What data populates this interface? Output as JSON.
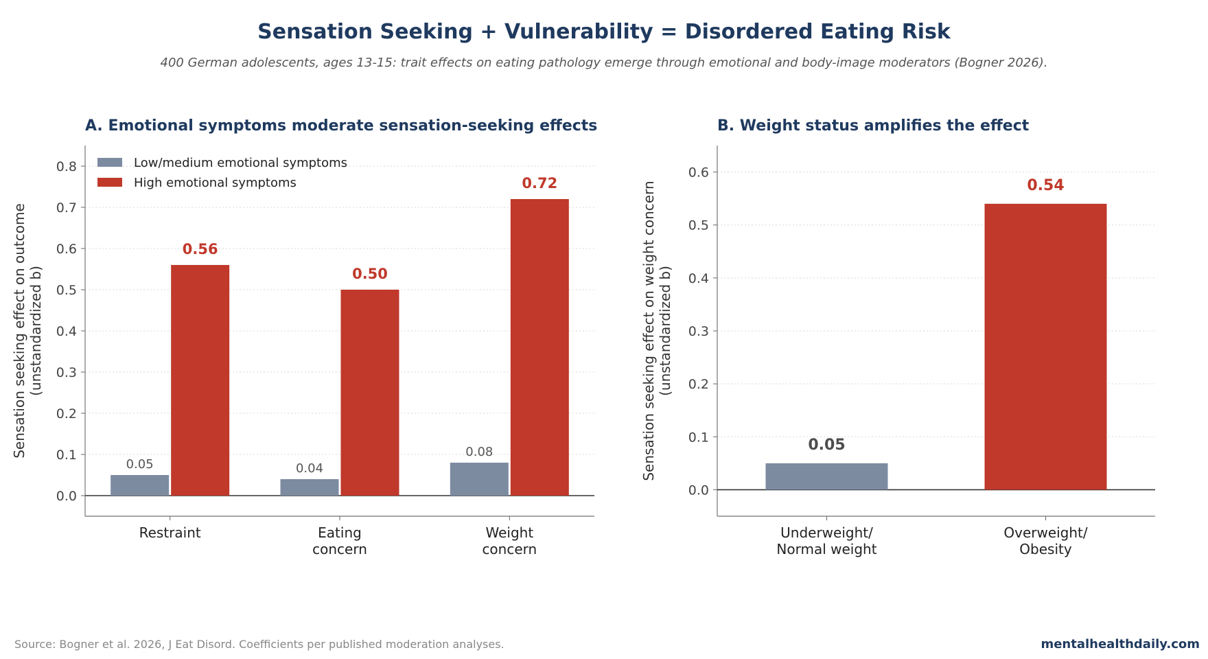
{
  "header": {
    "title": "Sensation Seeking + Vulnerability = Disordered Eating Risk",
    "subtitle": "400 German adolescents, ages 13-15: trait effects on eating pathology emerge through emotional and body-image moderators (Bogner 2026)."
  },
  "footer": {
    "source": "Source: Bogner et al. 2026, J Eat Disord. Coefficients per published moderation analyses.",
    "brand": "mentalhealthdaily.com"
  },
  "colors": {
    "low": "#7d8ba1",
    "high": "#c0392b",
    "title": "#1f3a5f"
  },
  "chart_data": [
    {
      "panel": "A",
      "type": "bar",
      "title": "A. Emotional symptoms moderate sensation-seeking effects",
      "ylabel": [
        "Sensation seeking effect on outcome",
        "(unstandardized b)"
      ],
      "xlabel": "",
      "categories": [
        [
          "Restraint"
        ],
        [
          "Eating",
          "concern"
        ],
        [
          "Weight",
          "concern"
        ]
      ],
      "series": [
        {
          "name": "Low/medium emotional symptoms",
          "values": [
            0.05,
            0.04,
            0.08
          ],
          "labels": [
            "0.05",
            "0.04",
            "0.08"
          ],
          "color": "#7d8ba1"
        },
        {
          "name": "High emotional symptoms",
          "values": [
            0.56,
            0.5,
            0.72
          ],
          "labels": [
            "0.56",
            "0.50",
            "0.72"
          ],
          "color": "#c0392b"
        }
      ],
      "ylim": [
        -0.05,
        0.85
      ],
      "yticks": [
        0.0,
        0.1,
        0.2,
        0.3,
        0.4,
        0.5,
        0.6,
        0.7,
        0.8
      ],
      "ytick_labels": [
        "0.0",
        "0.1",
        "0.2",
        "0.3",
        "0.4",
        "0.5",
        "0.6",
        "0.7",
        "0.8"
      ],
      "grid": true,
      "legend": "top-left"
    },
    {
      "panel": "B",
      "type": "bar",
      "title": "B. Weight status amplifies the effect",
      "ylabel": [
        "Sensation seeking effect on weight concern",
        "(unstandardized b)"
      ],
      "xlabel": "",
      "categories": [
        [
          "Underweight/",
          "Normal weight"
        ],
        [
          "Overweight/",
          "Obesity"
        ]
      ],
      "values": [
        0.05,
        0.54
      ],
      "labels": [
        "0.05",
        "0.54"
      ],
      "colors": [
        "#7d8ba1",
        "#c0392b"
      ],
      "label_colors": [
        "#4d4d4d",
        "#c0392b"
      ],
      "ylim": [
        -0.05,
        0.65
      ],
      "yticks": [
        0.0,
        0.1,
        0.2,
        0.3,
        0.4,
        0.5,
        0.6
      ],
      "ytick_labels": [
        "0.0",
        "0.1",
        "0.2",
        "0.3",
        "0.4",
        "0.5",
        "0.6"
      ],
      "grid": true
    }
  ]
}
